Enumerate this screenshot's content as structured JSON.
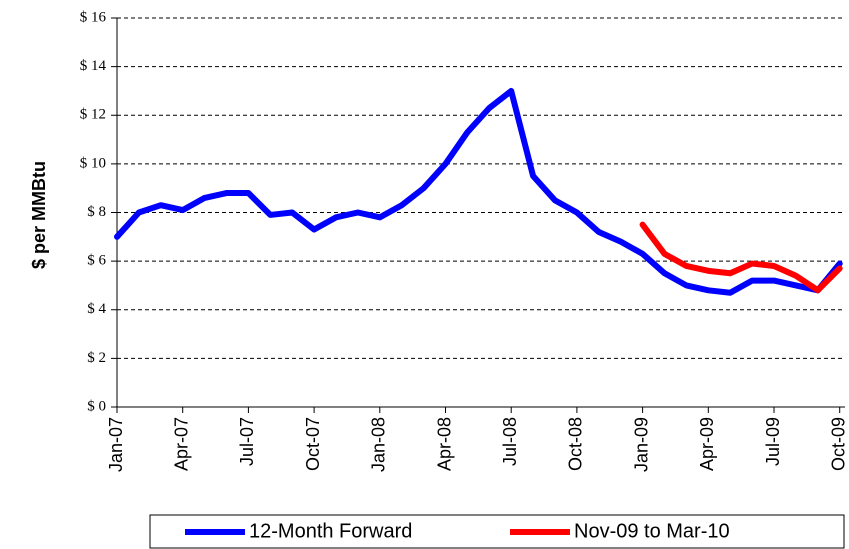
{
  "chart_data": {
    "type": "line",
    "ylabel": "$ per MMBtu",
    "categories": [
      "Jan-07",
      null,
      null,
      "Apr-07",
      null,
      null,
      "Jul-07",
      null,
      null,
      "Oct-07",
      null,
      null,
      "Jan-08",
      null,
      null,
      "Apr-08",
      null,
      null,
      "Jul-08",
      null,
      null,
      "Oct-08",
      null,
      null,
      "Jan-09",
      null,
      null,
      "Apr-09",
      null,
      null,
      "Jul-09",
      null,
      null,
      "Oct-09"
    ],
    "series": [
      {
        "name": "12-Month Forward",
        "color": "#0000ff",
        "values": [
          7.0,
          8.0,
          8.3,
          8.1,
          8.6,
          8.8,
          8.8,
          7.9,
          8.0,
          7.3,
          7.8,
          8.0,
          7.8,
          8.3,
          9.0,
          10.0,
          11.3,
          12.3,
          13.0,
          9.5,
          8.5,
          8.0,
          7.2,
          6.8,
          6.3,
          5.5,
          5.0,
          4.8,
          4.7,
          5.2,
          5.2,
          5.0,
          4.8,
          5.9
        ]
      },
      {
        "name": "Nov-09 to Mar-10",
        "color": "#ff0000",
        "values": [
          null,
          null,
          null,
          null,
          null,
          null,
          null,
          null,
          null,
          null,
          null,
          null,
          null,
          null,
          null,
          null,
          null,
          null,
          null,
          null,
          null,
          null,
          null,
          null,
          7.5,
          6.3,
          5.8,
          5.6,
          5.5,
          5.9,
          5.8,
          5.4,
          4.8,
          5.7
        ]
      }
    ],
    "ylim": [
      0,
      16
    ],
    "yticks": [
      {
        "value": 0,
        "label": "$ 0"
      },
      {
        "value": 2,
        "label": "$ 2"
      },
      {
        "value": 4,
        "label": "$ 4"
      },
      {
        "value": 6,
        "label": "$ 6"
      },
      {
        "value": 8,
        "label": "$ 8"
      },
      {
        "value": 10,
        "label": "$ 10"
      },
      {
        "value": 12,
        "label": "$ 12"
      },
      {
        "value": 14,
        "label": "$ 14"
      },
      {
        "value": 16,
        "label": "$ 16"
      }
    ],
    "grid": true,
    "legend": "bottom"
  }
}
